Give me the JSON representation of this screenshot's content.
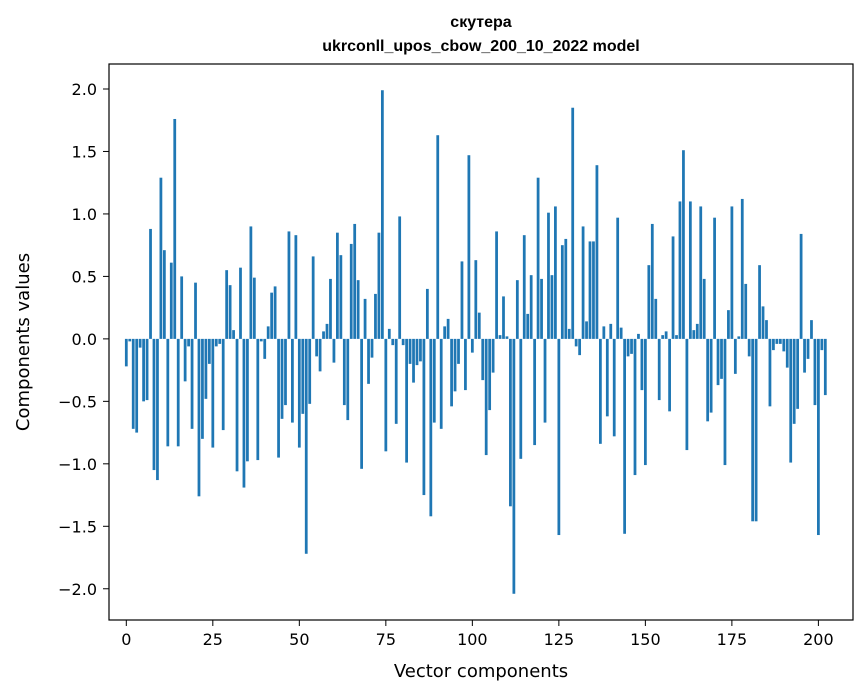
{
  "chart_data": {
    "type": "bar",
    "title": "скутера",
    "subtitle": "ukrconll_upos_cbow_200_10_2022 model",
    "xlabel": "Vector components",
    "ylabel": "Components values",
    "xlim": [
      -5,
      210
    ],
    "ylim": [
      -2.25,
      2.2
    ],
    "xticks": [
      0,
      25,
      50,
      75,
      100,
      125,
      150,
      175,
      200
    ],
    "yticks": [
      -2.0,
      -1.5,
      -1.0,
      -0.5,
      0.0,
      0.5,
      1.0,
      1.5,
      2.0
    ],
    "ytick_labels": [
      "−2.0",
      "−1.5",
      "−1.0",
      "−0.5",
      "0.0",
      "0.5",
      "1.0",
      "1.5",
      "2.0"
    ],
    "bar_color": "#1f77b4",
    "values": [
      -0.22,
      -0.02,
      -0.72,
      -0.75,
      -0.07,
      -0.5,
      -0.49,
      0.88,
      -1.05,
      -1.13,
      1.29,
      0.71,
      -0.86,
      0.61,
      1.76,
      -0.86,
      0.5,
      -0.34,
      -0.06,
      -0.72,
      0.45,
      -1.26,
      -0.8,
      -0.48,
      -0.2,
      -0.87,
      -0.06,
      -0.04,
      -0.73,
      0.55,
      0.43,
      0.07,
      -1.06,
      0.57,
      -1.19,
      -0.98,
      0.9,
      0.49,
      -0.97,
      -0.02,
      -0.16,
      0.1,
      0.37,
      0.42,
      -0.95,
      -0.64,
      -0.53,
      0.86,
      -0.67,
      0.83,
      -0.87,
      -0.6,
      -1.72,
      -0.52,
      0.66,
      -0.14,
      -0.26,
      0.06,
      0.12,
      0.48,
      -0.19,
      0.85,
      0.67,
      -0.53,
      -0.65,
      0.76,
      0.92,
      0.47,
      -1.04,
      0.32,
      -0.36,
      -0.15,
      0.36,
      0.85,
      1.99,
      -0.9,
      0.08,
      -0.05,
      -0.68,
      0.98,
      -0.05,
      -0.99,
      -0.2,
      -0.35,
      -0.21,
      -0.18,
      -1.25,
      0.4,
      -1.42,
      -0.67,
      1.63,
      -0.72,
      0.1,
      0.16,
      -0.54,
      -0.42,
      -0.2,
      0.62,
      -0.41,
      1.47,
      -0.11,
      0.63,
      0.21,
      -0.33,
      -0.93,
      -0.57,
      -0.27,
      0.86,
      0.03,
      0.34,
      0.02,
      -1.34,
      -2.04,
      0.47,
      -0.96,
      0.83,
      0.2,
      0.51,
      -0.85,
      1.29,
      0.48,
      -0.67,
      1.01,
      0.51,
      1.06,
      -1.57,
      0.75,
      0.8,
      0.08,
      1.85,
      -0.06,
      -0.13,
      0.9,
      0.14,
      0.78,
      0.78,
      1.39,
      -0.84,
      0.1,
      -0.62,
      0.12,
      -0.78,
      0.97,
      0.09,
      -1.56,
      -0.14,
      -0.12,
      -1.09,
      0.04,
      -0.41,
      -1.01,
      0.59,
      0.92,
      0.32,
      -0.49,
      0.03,
      0.06,
      -0.58,
      0.82,
      0.03,
      1.1,
      1.51,
      -0.89,
      1.1,
      0.07,
      0.12,
      1.06,
      0.48,
      -0.66,
      -0.59,
      0.97,
      -0.37,
      -0.32,
      -1.01,
      0.23,
      1.06,
      -0.28,
      0.02,
      1.12,
      0.44,
      -0.14,
      -1.46,
      -1.46,
      0.59,
      0.26,
      0.15,
      -0.54,
      -0.09,
      -0.04,
      -0.04,
      -0.1,
      -0.23,
      -0.99,
      -0.68,
      -0.56,
      0.84,
      -0.27,
      -0.16,
      0.15,
      -0.53,
      -1.57,
      -0.09,
      -0.45
    ]
  }
}
